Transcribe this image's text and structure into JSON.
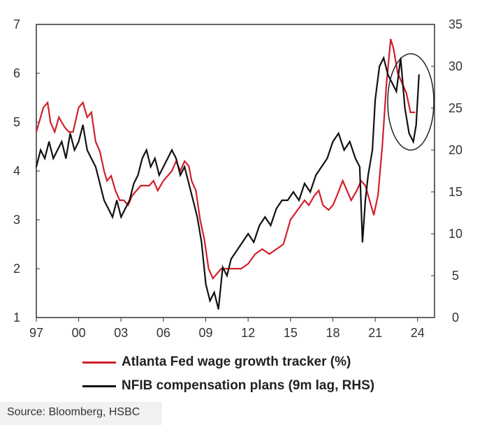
{
  "chart_data": {
    "type": "line",
    "x_tick_labels": [
      "97",
      "00",
      "03",
      "06",
      "09",
      "12",
      "15",
      "18",
      "21",
      "24"
    ],
    "x_tick_years": [
      1997,
      2000,
      2003,
      2006,
      2009,
      2012,
      2015,
      2018,
      2021,
      2024
    ],
    "x_range": [
      1997.0,
      2025.2
    ],
    "y_left": {
      "range": [
        1,
        7
      ],
      "ticks": [
        1,
        2,
        3,
        4,
        5,
        6,
        7
      ]
    },
    "y_right": {
      "range": [
        0,
        35
      ],
      "ticks": [
        0,
        5,
        10,
        15,
        20,
        25,
        30,
        35
      ]
    },
    "series": [
      {
        "name": "Atlanta Fed wage growth tracker (%)",
        "axis": "left",
        "color": "#d0202a",
        "x": [
          1997.0,
          1997.5,
          1997.8,
          1998.0,
          1998.3,
          1998.6,
          1999.0,
          1999.3,
          1999.6,
          2000.0,
          2000.3,
          2000.6,
          2000.9,
          2001.2,
          2001.5,
          2001.8,
          2002.0,
          2002.3,
          2002.6,
          2002.9,
          2003.2,
          2003.5,
          2003.8,
          2004.1,
          2004.4,
          2004.7,
          2005.0,
          2005.3,
          2005.6,
          2006.0,
          2006.3,
          2006.6,
          2006.9,
          2007.2,
          2007.5,
          2007.8,
          2008.0,
          2008.3,
          2008.6,
          2008.9,
          2009.2,
          2009.5,
          2009.8,
          2010.1,
          2010.4,
          2010.7,
          2011.0,
          2011.5,
          2012.0,
          2012.5,
          2013.0,
          2013.5,
          2014.0,
          2014.5,
          2015.0,
          2015.5,
          2016.0,
          2016.3,
          2016.7,
          2017.0,
          2017.3,
          2017.7,
          2018.0,
          2018.3,
          2018.7,
          2019.0,
          2019.3,
          2019.7,
          2020.0,
          2020.3,
          2020.6,
          2020.9,
          2021.2,
          2021.5,
          2021.8,
          2022.1,
          2022.3,
          2022.6,
          2022.9,
          2023.2,
          2023.5,
          2023.8
        ],
        "y": [
          4.8,
          5.3,
          5.4,
          5.0,
          4.8,
          5.1,
          4.9,
          4.8,
          4.8,
          5.3,
          5.4,
          5.1,
          5.2,
          4.6,
          4.4,
          4.0,
          3.8,
          3.9,
          3.6,
          3.4,
          3.4,
          3.3,
          3.5,
          3.6,
          3.7,
          3.7,
          3.7,
          3.8,
          3.6,
          3.8,
          3.9,
          4.0,
          4.2,
          4.0,
          4.2,
          4.1,
          3.8,
          3.6,
          3.0,
          2.6,
          2.0,
          1.8,
          1.9,
          2.0,
          2.0,
          2.0,
          2.0,
          2.0,
          2.1,
          2.3,
          2.4,
          2.3,
          2.4,
          2.5,
          3.0,
          3.2,
          3.4,
          3.3,
          3.5,
          3.6,
          3.3,
          3.2,
          3.3,
          3.5,
          3.8,
          3.6,
          3.4,
          3.6,
          3.8,
          3.7,
          3.4,
          3.1,
          3.5,
          4.5,
          5.8,
          6.7,
          6.5,
          6.0,
          5.8,
          5.6,
          5.2,
          5.2
        ]
      },
      {
        "name": "NFIB compensation plans (9m lag, RHS)",
        "axis": "right",
        "color": "#111111",
        "x": [
          1997.0,
          1997.3,
          1997.6,
          1997.9,
          1998.2,
          1998.5,
          1998.8,
          1999.1,
          1999.4,
          1999.7,
          2000.0,
          2000.3,
          2000.6,
          2000.9,
          2001.2,
          2001.5,
          2001.8,
          2002.1,
          2002.4,
          2002.7,
          2003.0,
          2003.3,
          2003.6,
          2003.9,
          2004.2,
          2004.5,
          2004.8,
          2005.1,
          2005.4,
          2005.7,
          2006.0,
          2006.3,
          2006.6,
          2006.9,
          2007.2,
          2007.5,
          2007.8,
          2008.1,
          2008.4,
          2008.7,
          2009.0,
          2009.3,
          2009.6,
          2009.9,
          2010.2,
          2010.5,
          2010.8,
          2011.2,
          2011.6,
          2012.0,
          2012.4,
          2012.8,
          2013.2,
          2013.6,
          2014.0,
          2014.4,
          2014.8,
          2015.2,
          2015.6,
          2016.0,
          2016.4,
          2016.8,
          2017.2,
          2017.6,
          2018.0,
          2018.4,
          2018.8,
          2019.2,
          2019.6,
          2019.9,
          2020.1,
          2020.3,
          2020.5,
          2020.8,
          2021.0,
          2021.3,
          2021.6,
          2021.9,
          2022.2,
          2022.5,
          2022.8,
          2023.1,
          2023.4,
          2023.7,
          2023.9,
          2024.1
        ],
        "y": [
          18,
          20,
          19,
          21,
          19,
          20,
          21,
          19,
          22,
          20,
          21,
          23,
          20,
          19,
          18,
          16,
          14,
          13,
          12,
          14,
          12,
          13,
          14,
          16,
          17,
          19,
          20,
          18,
          19,
          17,
          18,
          19,
          20,
          19,
          17,
          18,
          16,
          14,
          12,
          9,
          4,
          2,
          3,
          1,
          6,
          5,
          7,
          8,
          9,
          10,
          9,
          11,
          12,
          11,
          13,
          14,
          14,
          15,
          14,
          16,
          15,
          17,
          18,
          19,
          21,
          22,
          20,
          21,
          19,
          18,
          9,
          14,
          17,
          20,
          26,
          30,
          31,
          29,
          28,
          27,
          31,
          25,
          22,
          21,
          23,
          29
        ]
      }
    ],
    "annotation": "ellipse around the 2023-2024 readings"
  },
  "legend": {
    "item1": "Atlanta Fed wage growth tracker (%)",
    "item2": "NFIB compensation plans (9m lag, RHS)"
  },
  "source": "Source: Bloomberg, HSBC",
  "colors": {
    "wage": "#d0202a",
    "nfib": "#111111"
  }
}
